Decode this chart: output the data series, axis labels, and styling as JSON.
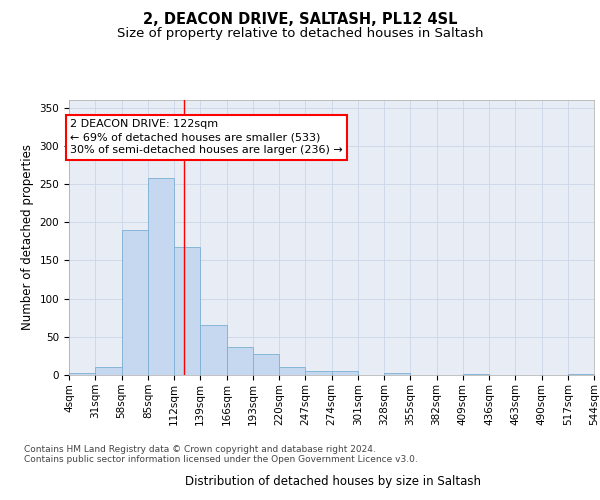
{
  "title1": "2, DEACON DRIVE, SALTASH, PL12 4SL",
  "title2": "Size of property relative to detached houses in Saltash",
  "xlabel": "Distribution of detached houses by size in Saltash",
  "ylabel": "Number of detached properties",
  "bin_edges": [
    4,
    31,
    58,
    85,
    112,
    139,
    166,
    193,
    220,
    247,
    274,
    301,
    328,
    355,
    382,
    409,
    436,
    463,
    490,
    517,
    544
  ],
  "bar_heights": [
    2,
    10,
    190,
    258,
    168,
    65,
    37,
    28,
    11,
    5,
    5,
    0,
    3,
    0,
    0,
    1,
    0,
    0,
    0,
    1
  ],
  "bar_color": "#c5d8f0",
  "bar_edge_color": "#7bafd4",
  "red_line_x": 122,
  "annotation_line1": "2 DEACON DRIVE: 122sqm",
  "annotation_line2": "← 69% of detached houses are smaller (533)",
  "annotation_line3": "30% of semi-detached houses are larger (236) →",
  "annotation_box_color": "white",
  "annotation_box_edge_color": "red",
  "ylim": [
    0,
    360
  ],
  "yticks": [
    0,
    50,
    100,
    150,
    200,
    250,
    300,
    350
  ],
  "grid_color": "#ccd6e8",
  "background_color": "#e8edf5",
  "footer1": "Contains HM Land Registry data © Crown copyright and database right 2024.",
  "footer2": "Contains public sector information licensed under the Open Government Licence v3.0.",
  "title_fontsize": 10.5,
  "subtitle_fontsize": 9.5,
  "axis_label_fontsize": 8.5,
  "tick_fontsize": 7.5,
  "annotation_fontsize": 8,
  "footer_fontsize": 6.5
}
